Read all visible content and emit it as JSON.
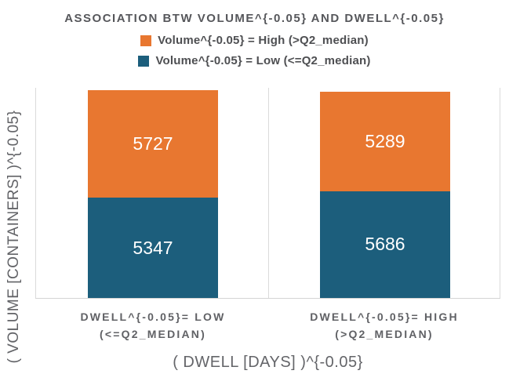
{
  "chart_data": {
    "type": "bar",
    "stacked": true,
    "title": "ASSOCIATION BTW VOLUME^{-0.05} AND DWELL^{-0.05}",
    "xlabel": "( DWELL [DAYS] )^{-0.05}",
    "ylabel": "( VOLUME [CONTAINERS] )^{-0.05}",
    "legend_position": "top",
    "y_axis_tick_labels": "none",
    "grid": "vertical-category-boundaries",
    "categories": [
      "DWELL^{-0.05}= LOW (<=Q2_MEDIAN)",
      "DWELL^{-0.05}= HIGH (>Q2_MEDIAN)"
    ],
    "categories_lines": [
      {
        "line1": "DWELL^{-0.05}= LOW",
        "line2": "(<=Q2_MEDIAN)"
      },
      {
        "line1": "DWELL^{-0.05}= HIGH",
        "line2": "(>Q2_MEDIAN)"
      }
    ],
    "series": [
      {
        "name": "Volume^{-0.05} = High (>Q2_median)",
        "color": "#E87730",
        "values": [
          5727,
          5289
        ]
      },
      {
        "name": "Volume^{-0.05} = Low (<=Q2_median)",
        "color": "#1C5E7C",
        "values": [
          5347,
          5686
        ]
      }
    ],
    "colors": {
      "orange_series": "#E87730",
      "teal_series": "#1C5E7C",
      "gridline": "#DADADA",
      "axis_line": "#D4D4D4",
      "title_text": "#56575B",
      "legend_text": "#4E4F52",
      "category_text": "#606165",
      "axis_title_text": "#646569",
      "data_label_text": "#FFFFFF"
    }
  }
}
